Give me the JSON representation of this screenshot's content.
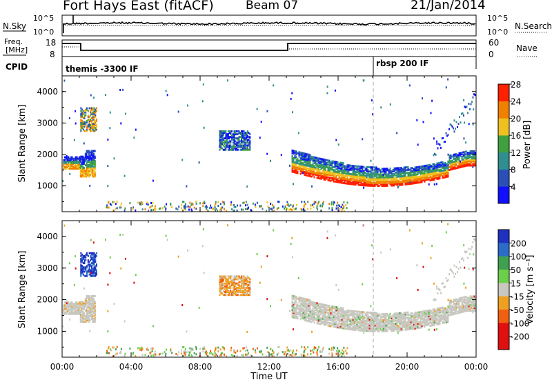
{
  "header": {
    "station": "Fort Hays East (fitACF)",
    "beam": "Beam 07",
    "date": "21/Jan/2014"
  },
  "panels": {
    "nsky": {
      "left_label": "N.Sky",
      "right_label": "N.Search",
      "left_ticks": [
        "10^5",
        "10^0"
      ],
      "right_ticks": [
        "10^5",
        "10^0"
      ]
    },
    "freq": {
      "left_label_line1": "Freq.",
      "left_label_line2": "[MHz]",
      "left_ticks": [
        "18",
        "8"
      ],
      "right_label": "Nave",
      "right_ticks": [
        "60",
        "0"
      ]
    },
    "cpid": {
      "label": "CPID",
      "mode1": "themis -3300 IF",
      "mode2": "rbsp 200 IF",
      "mode2_start_hour": 18
    }
  },
  "chart_data": [
    {
      "type": "heatmap",
      "name": "power",
      "ylabel": "Slant Range [km]",
      "xlabel": "",
      "xlim": [
        0,
        24
      ],
      "ylim": [
        180,
        4500
      ],
      "yticks": [
        "1000",
        "2000",
        "3000",
        "4000"
      ],
      "colorbar": {
        "label": "Power [dB]",
        "ticks": [
          "4",
          "8",
          "12",
          "16",
          "20",
          "24",
          "28"
        ],
        "colors": [
          "#1010ff",
          "#2a50b8",
          "#2f8f8f",
          "#40a040",
          "#f0c020",
          "#f08000",
          "#ff2000"
        ]
      }
    },
    {
      "type": "heatmap",
      "name": "velocity",
      "ylabel": "Slant Range [km]",
      "xlabel": "Time UT",
      "xlim": [
        0,
        24
      ],
      "ylim": [
        180,
        4500
      ],
      "yticks": [
        "1000",
        "2000",
        "3000",
        "4000"
      ],
      "xticks": [
        "00:00",
        "04:00",
        "08:00",
        "12:00",
        "16:00",
        "20:00",
        "00:00"
      ],
      "colorbar": {
        "label": "Velocity [m s⁻¹]",
        "ticks": [
          "200",
          "100",
          "50",
          "15",
          "-15",
          "-50",
          "-100",
          "-200"
        ],
        "colors": [
          "#2030c0",
          "#2a6cc8",
          "#3fa04f",
          "#6ccf4a",
          "#c8c8c0",
          "#f0a020",
          "#f06010",
          "#e01010"
        ]
      }
    }
  ]
}
